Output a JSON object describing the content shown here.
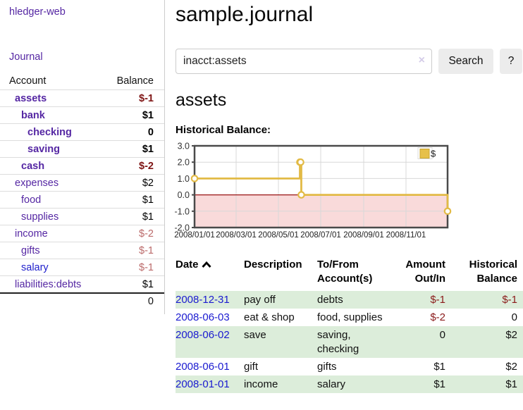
{
  "brand": "hledger-web",
  "nav": {
    "journal": "Journal"
  },
  "accounts_panel": {
    "col_account": "Account",
    "col_balance": "Balance",
    "rows": [
      {
        "name": "assets",
        "balance": "$-1",
        "level": 0,
        "emphasis": true,
        "link_color": "purple"
      },
      {
        "name": "bank",
        "balance": "$1",
        "level": 1,
        "emphasis": true,
        "link_color": "purple"
      },
      {
        "name": "checking",
        "balance": "0",
        "level": 2,
        "emphasis": true,
        "link_color": "purple"
      },
      {
        "name": "saving",
        "balance": "$1",
        "level": 2,
        "emphasis": true,
        "link_color": "purple"
      },
      {
        "name": "cash",
        "balance": "$-2",
        "level": 1,
        "emphasis": true,
        "link_color": "purple"
      },
      {
        "name": "expenses",
        "balance": "$2",
        "level": 0,
        "emphasis": false,
        "link_color": "purple"
      },
      {
        "name": "food",
        "balance": "$1",
        "level": 1,
        "emphasis": false,
        "link_color": "purple"
      },
      {
        "name": "supplies",
        "balance": "$1",
        "level": 1,
        "emphasis": false,
        "link_color": "purple"
      },
      {
        "name": "income",
        "balance": "$-2",
        "level": 0,
        "emphasis": false,
        "link_color": "purple"
      },
      {
        "name": "gifts",
        "balance": "$-1",
        "level": 1,
        "emphasis": false,
        "link_color": "purple"
      },
      {
        "name": "salary",
        "balance": "$-1",
        "level": 1,
        "emphasis": false,
        "link_color": "blue"
      },
      {
        "name": "liabilities:debts",
        "balance": "$1",
        "level": 0,
        "emphasis": false,
        "link_color": "purple"
      }
    ],
    "total": "0"
  },
  "main": {
    "title": "sample.journal",
    "search": {
      "value": "inacct:assets",
      "clear_icon": "×",
      "button": "Search",
      "help_button": "?"
    },
    "account_heading": "assets",
    "chart_heading": "Historical Balance:"
  },
  "chart_data": {
    "type": "line",
    "step": true,
    "title": "Historical Balance",
    "series": [
      {
        "name": "$",
        "points": [
          [
            "2008-01-01",
            1
          ],
          [
            "2008-06-01",
            2
          ],
          [
            "2008-06-02",
            2
          ],
          [
            "2008-06-03",
            0
          ],
          [
            "2008-12-31",
            -1
          ]
        ]
      }
    ],
    "ylim": [
      -2,
      3
    ],
    "yticks": [
      "3.0",
      "2.0",
      "1.0",
      "0.0",
      "-1.0",
      "-2.0"
    ],
    "xticks": [
      "2008/01/01",
      "2008/03/01",
      "2008/05/01",
      "2008/07/01",
      "2008/09/01",
      "2008/11/01"
    ],
    "legend": [
      {
        "label": "$",
        "color": "#e6c04a"
      }
    ],
    "line_color": "#e2ba45",
    "negative_region_color": "#f9dada",
    "zero_line_color": "#991414",
    "grid": true,
    "legend_position": "top-right"
  },
  "register": {
    "columns": [
      "Date",
      "Description",
      "To/From Account(s)",
      "Amount Out/In",
      "Historical Balance"
    ],
    "sort_icon": "chevron-up-icon",
    "rows": [
      {
        "date": "2008-12-31",
        "description": "pay off",
        "accounts": "debts",
        "amount": "$-1",
        "balance": "$-1"
      },
      {
        "date": "2008-06-03",
        "description": "eat & shop",
        "accounts": "food, supplies",
        "amount": "$-2",
        "balance": "0"
      },
      {
        "date": "2008-06-02",
        "description": "save",
        "accounts": "saving, checking",
        "amount": "0",
        "balance": "$2"
      },
      {
        "date": "2008-06-01",
        "description": "gift",
        "accounts": "gifts",
        "amount": "$1",
        "balance": "$2"
      },
      {
        "date": "2008-01-01",
        "description": "income",
        "accounts": "salary",
        "amount": "$1",
        "balance": "$1"
      }
    ]
  }
}
